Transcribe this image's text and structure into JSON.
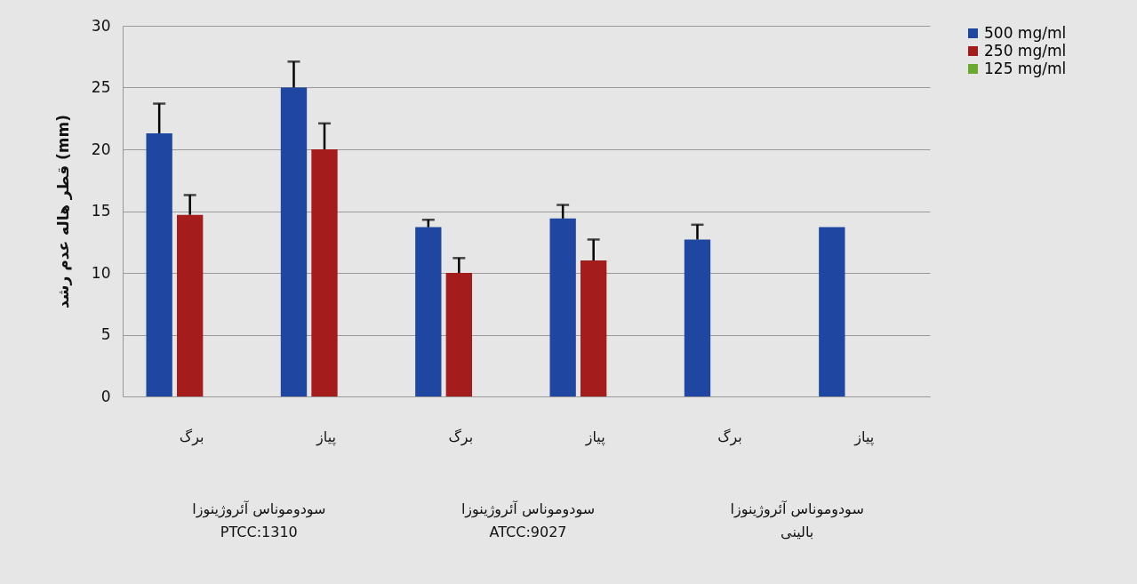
{
  "chart_data": {
    "type": "bar",
    "ylabel": "قطر هاله عدم رشد (mm)",
    "categories": [
      "برگ",
      "پیاز",
      "برگ",
      "پیاز",
      "برگ",
      "پیاز"
    ],
    "series": [
      {
        "name": "500 mg/ml",
        "color": "#1f46a0",
        "values": [
          21.3,
          25.0,
          13.7,
          14.4,
          12.7,
          13.7
        ],
        "errors": [
          [
            21.3,
            23.7
          ],
          [
            25.0,
            27.1
          ],
          [
            13.7,
            14.3
          ],
          [
            14.4,
            15.5
          ],
          [
            12.7,
            13.9
          ],
          null
        ]
      },
      {
        "name": "250 mg/ml",
        "color": "#a51c1c",
        "values": [
          14.7,
          20.0,
          10.0,
          11.0,
          null,
          null
        ],
        "errors": [
          [
            14.7,
            16.3
          ],
          [
            20.0,
            22.1
          ],
          [
            10.0,
            11.2
          ],
          [
            11.0,
            12.7
          ],
          null,
          null
        ]
      },
      {
        "name": "125 mg/ml",
        "color": "#6aa82e",
        "values": [
          null,
          null,
          null,
          null,
          null,
          null
        ]
      }
    ],
    "annotations": [
      "سودوموناس آئروژینوزا\nPTCC:1310",
      "سودوموناس آئروژینوزا\nATCC:9027",
      "سودوموناس آئروژینوزا\nبالینی"
    ],
    "ylim": [
      0,
      30
    ],
    "yticks": [
      0,
      5,
      10,
      15,
      20,
      25,
      30
    ],
    "grid": "y",
    "legend": "right"
  }
}
